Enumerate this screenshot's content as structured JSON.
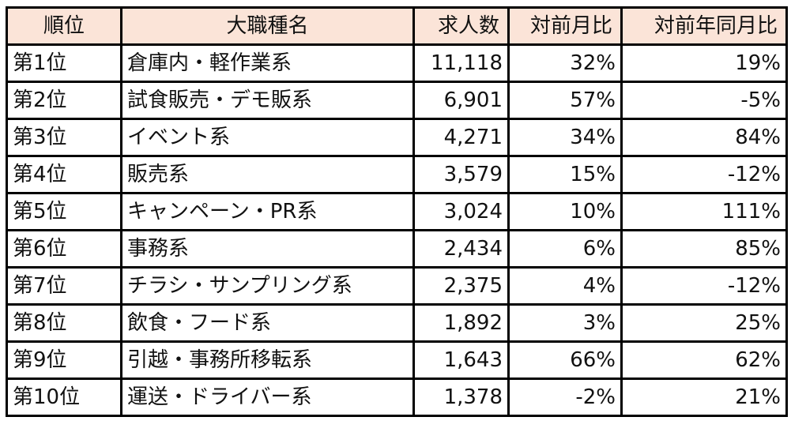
{
  "table": {
    "header_bg": "#fbe4d8",
    "columns": [
      "順位",
      "大職種名",
      "求人数",
      "対前月比",
      "対前年同月比"
    ],
    "rows": [
      {
        "rank": "第1位",
        "name": "倉庫内・軽作業系",
        "count": "11,118",
        "mom": "32%",
        "yoy": "19%"
      },
      {
        "rank": "第2位",
        "name": "試食販売・デモ販系",
        "count": "6,901",
        "mom": "57%",
        "yoy": "-5%"
      },
      {
        "rank": "第3位",
        "name": "イベント系",
        "count": "4,271",
        "mom": "34%",
        "yoy": "84%"
      },
      {
        "rank": "第4位",
        "name": "販売系",
        "count": "3,579",
        "mom": "15%",
        "yoy": "-12%"
      },
      {
        "rank": "第5位",
        "name": "キャンペーン・PR系",
        "count": "3,024",
        "mom": "10%",
        "yoy": "111%"
      },
      {
        "rank": "第6位",
        "name": "事務系",
        "count": "2,434",
        "mom": "6%",
        "yoy": "85%"
      },
      {
        "rank": "第7位",
        "name": "チラシ・サンプリング系",
        "count": "2,375",
        "mom": "4%",
        "yoy": "-12%"
      },
      {
        "rank": "第8位",
        "name": "飲食・フード系",
        "count": "1,892",
        "mom": "3%",
        "yoy": "25%"
      },
      {
        "rank": "第9位",
        "name": "引越・事務所移転系",
        "count": "1,643",
        "mom": "66%",
        "yoy": "62%"
      },
      {
        "rank": "第10位",
        "name": "運送・ドライバー系",
        "count": "1,378",
        "mom": "-2%",
        "yoy": "21%"
      }
    ]
  }
}
